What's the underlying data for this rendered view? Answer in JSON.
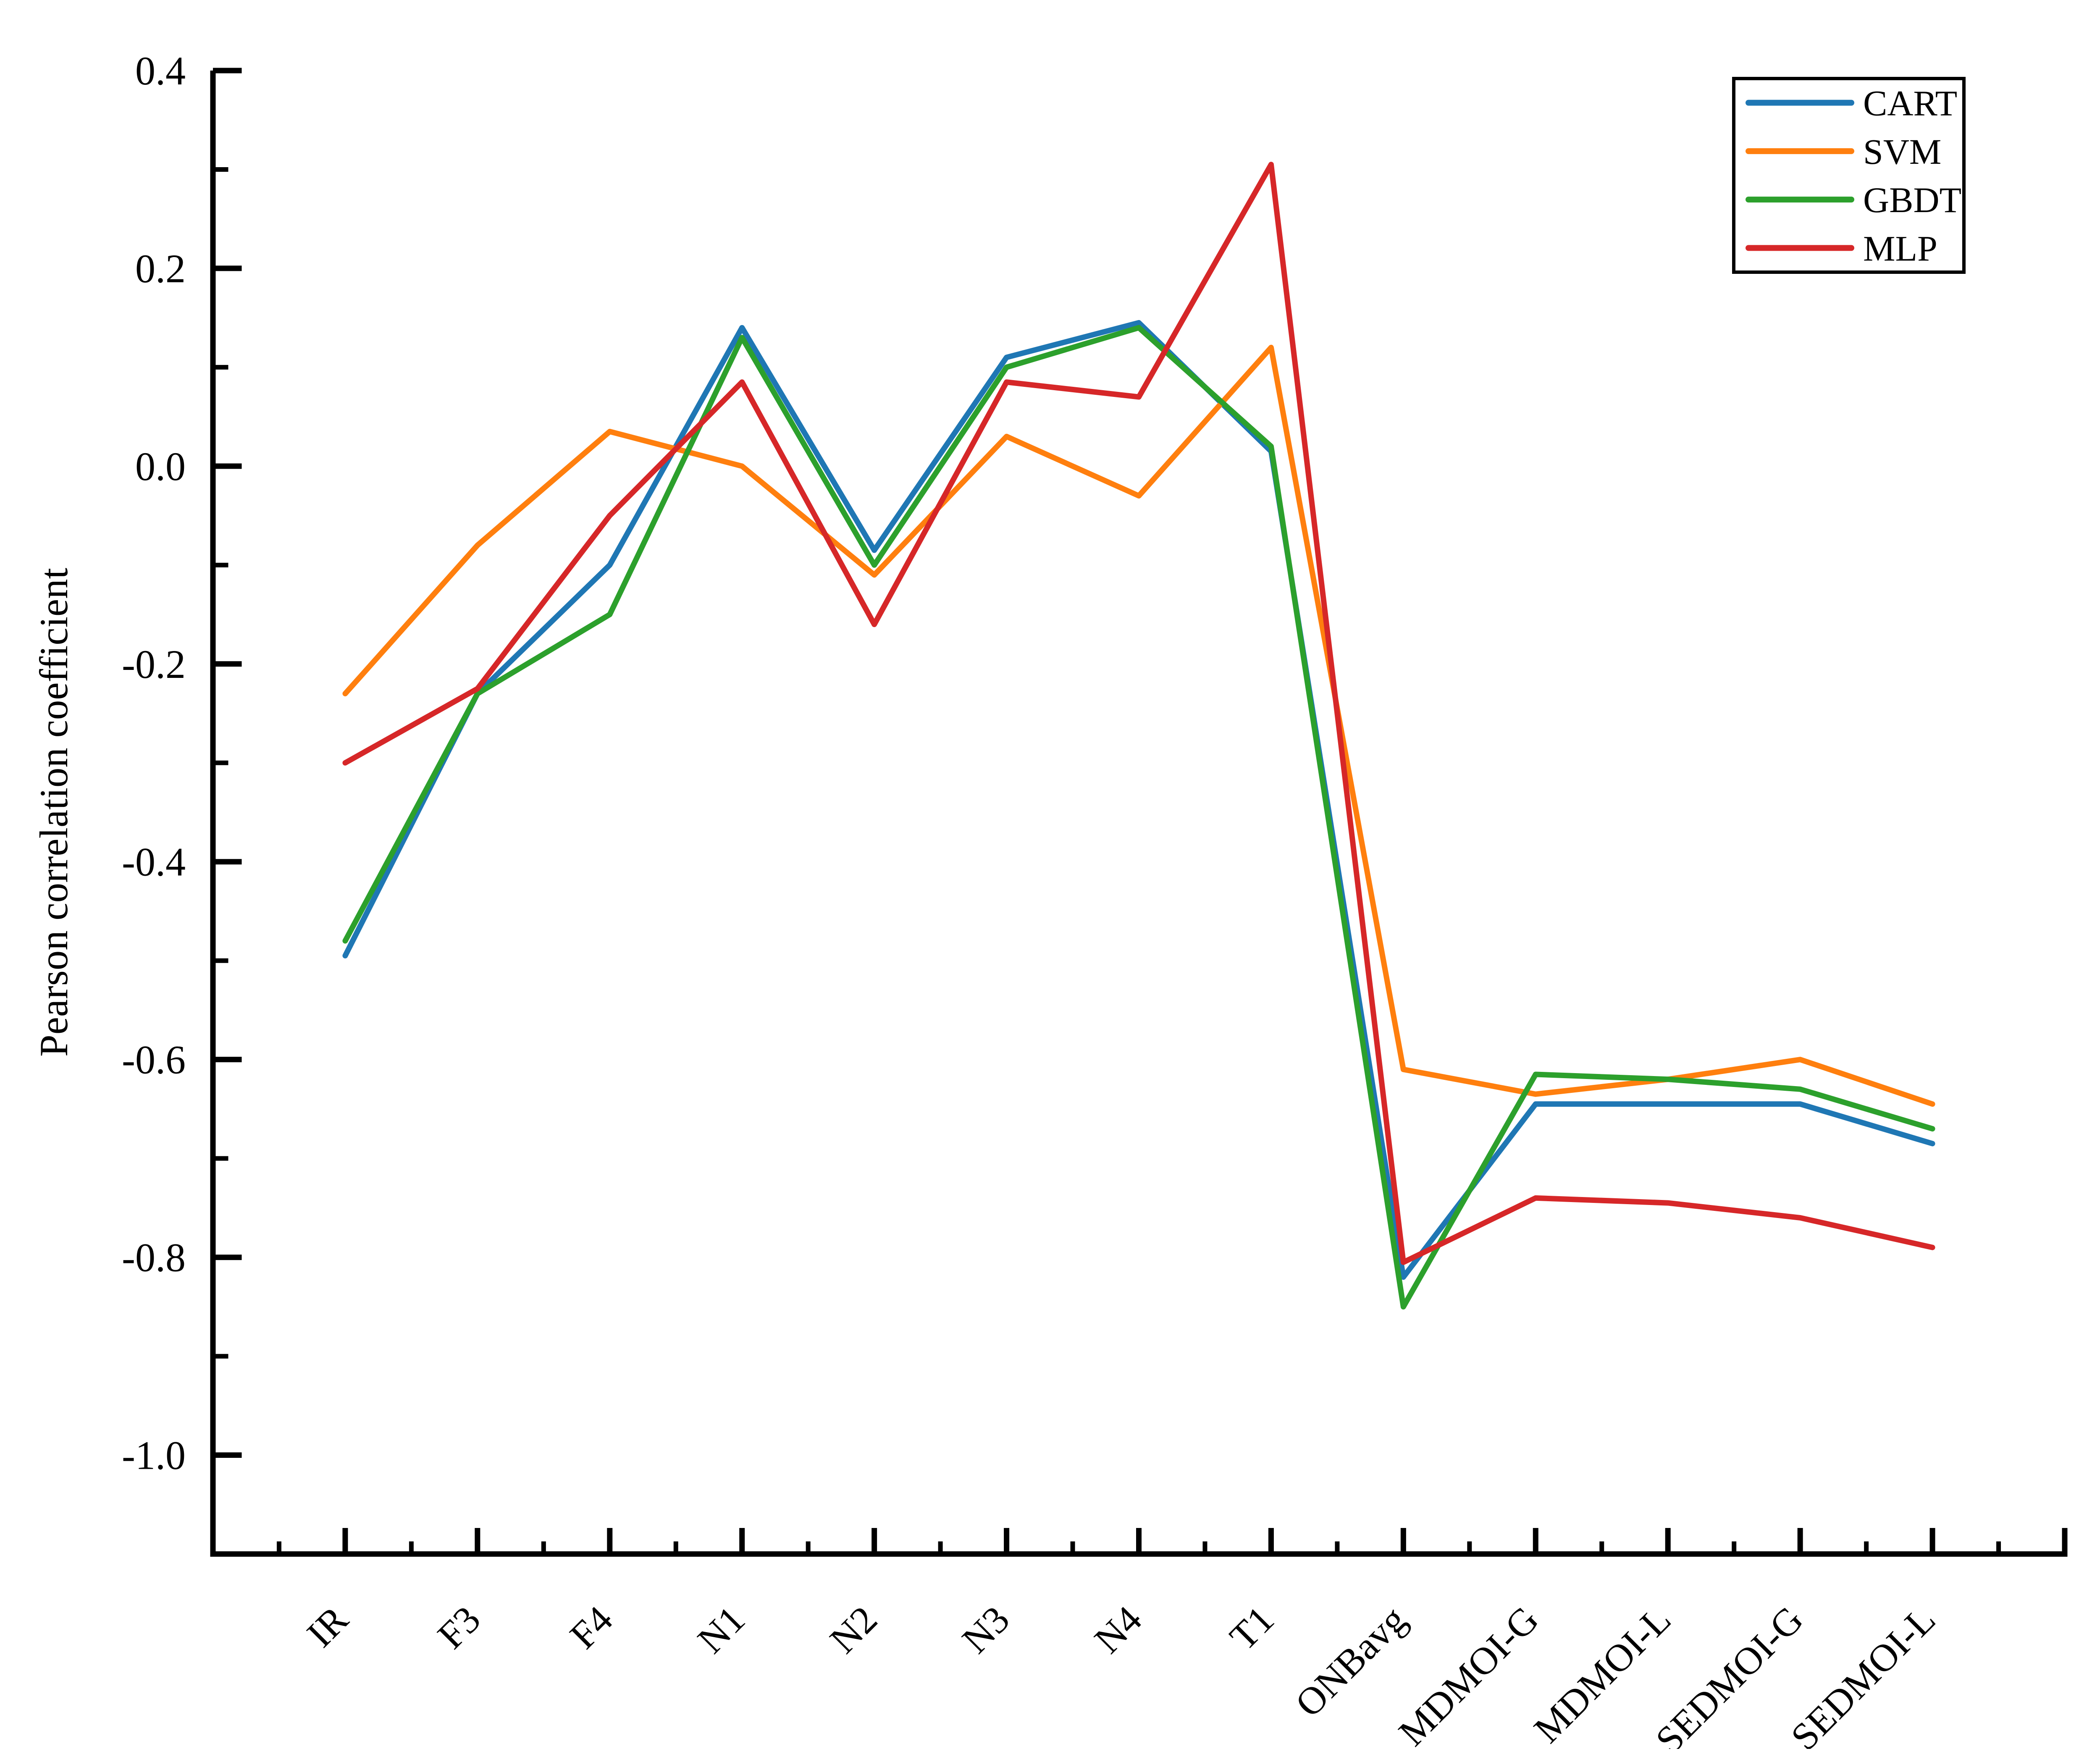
{
  "figure": {
    "background": "#ffffff",
    "axis_color": "#000000"
  },
  "chart_data": {
    "type": "line",
    "title": "",
    "xlabel": "",
    "ylabel": "Pearson correlation coefficient",
    "grid": false,
    "tick_direction": "in",
    "ylim": [
      -1.1,
      0.4
    ],
    "categories": [
      "IR",
      "F3",
      "F4",
      "N1",
      "N2",
      "N3",
      "N4",
      "T1",
      "ONBavg",
      "MDMOI-G",
      "MDMOI-L",
      "SEDMOI-G",
      "SEDMOI-L"
    ],
    "yticks": {
      "major": [
        0.4,
        0.2,
        0.0,
        -0.2,
        -0.4,
        -0.6,
        -0.8,
        -1.0
      ],
      "labels": [
        "0.4",
        "0.2",
        "0.0",
        "-0.2",
        "-0.4",
        "-0.6",
        "-0.8",
        "-1.0"
      ],
      "minor": [
        0.3,
        0.1,
        -0.1,
        -0.3,
        -0.5,
        -0.7,
        -0.9
      ]
    },
    "series": [
      {
        "name": "CART",
        "color": "#1f77b4",
        "values": [
          -0.495,
          -0.23,
          -0.1,
          0.14,
          -0.085,
          0.11,
          0.145,
          0.015,
          -0.82,
          -0.645,
          -0.645,
          -0.645,
          -0.685
        ]
      },
      {
        "name": "SVM",
        "color": "#ff7f0e",
        "values": [
          -0.23,
          -0.08,
          0.035,
          0.0,
          -0.11,
          0.03,
          -0.03,
          0.12,
          -0.61,
          -0.635,
          -0.62,
          -0.6,
          -0.645
        ]
      },
      {
        "name": "GBDT",
        "color": "#2ca02c",
        "values": [
          -0.48,
          -0.23,
          -0.15,
          0.13,
          -0.1,
          0.1,
          0.14,
          0.02,
          -0.85,
          -0.615,
          -0.62,
          -0.63,
          -0.67
        ]
      },
      {
        "name": "MLP",
        "color": "#d62728",
        "values": [
          -0.3,
          -0.225,
          -0.05,
          0.085,
          -0.16,
          0.085,
          0.07,
          0.305,
          -0.805,
          -0.74,
          -0.745,
          -0.76,
          -0.79
        ]
      }
    ],
    "legend": {
      "position": "top-right",
      "frame": true,
      "entries": [
        "CART",
        "SVM",
        "GBDT",
        "MLP"
      ]
    }
  }
}
